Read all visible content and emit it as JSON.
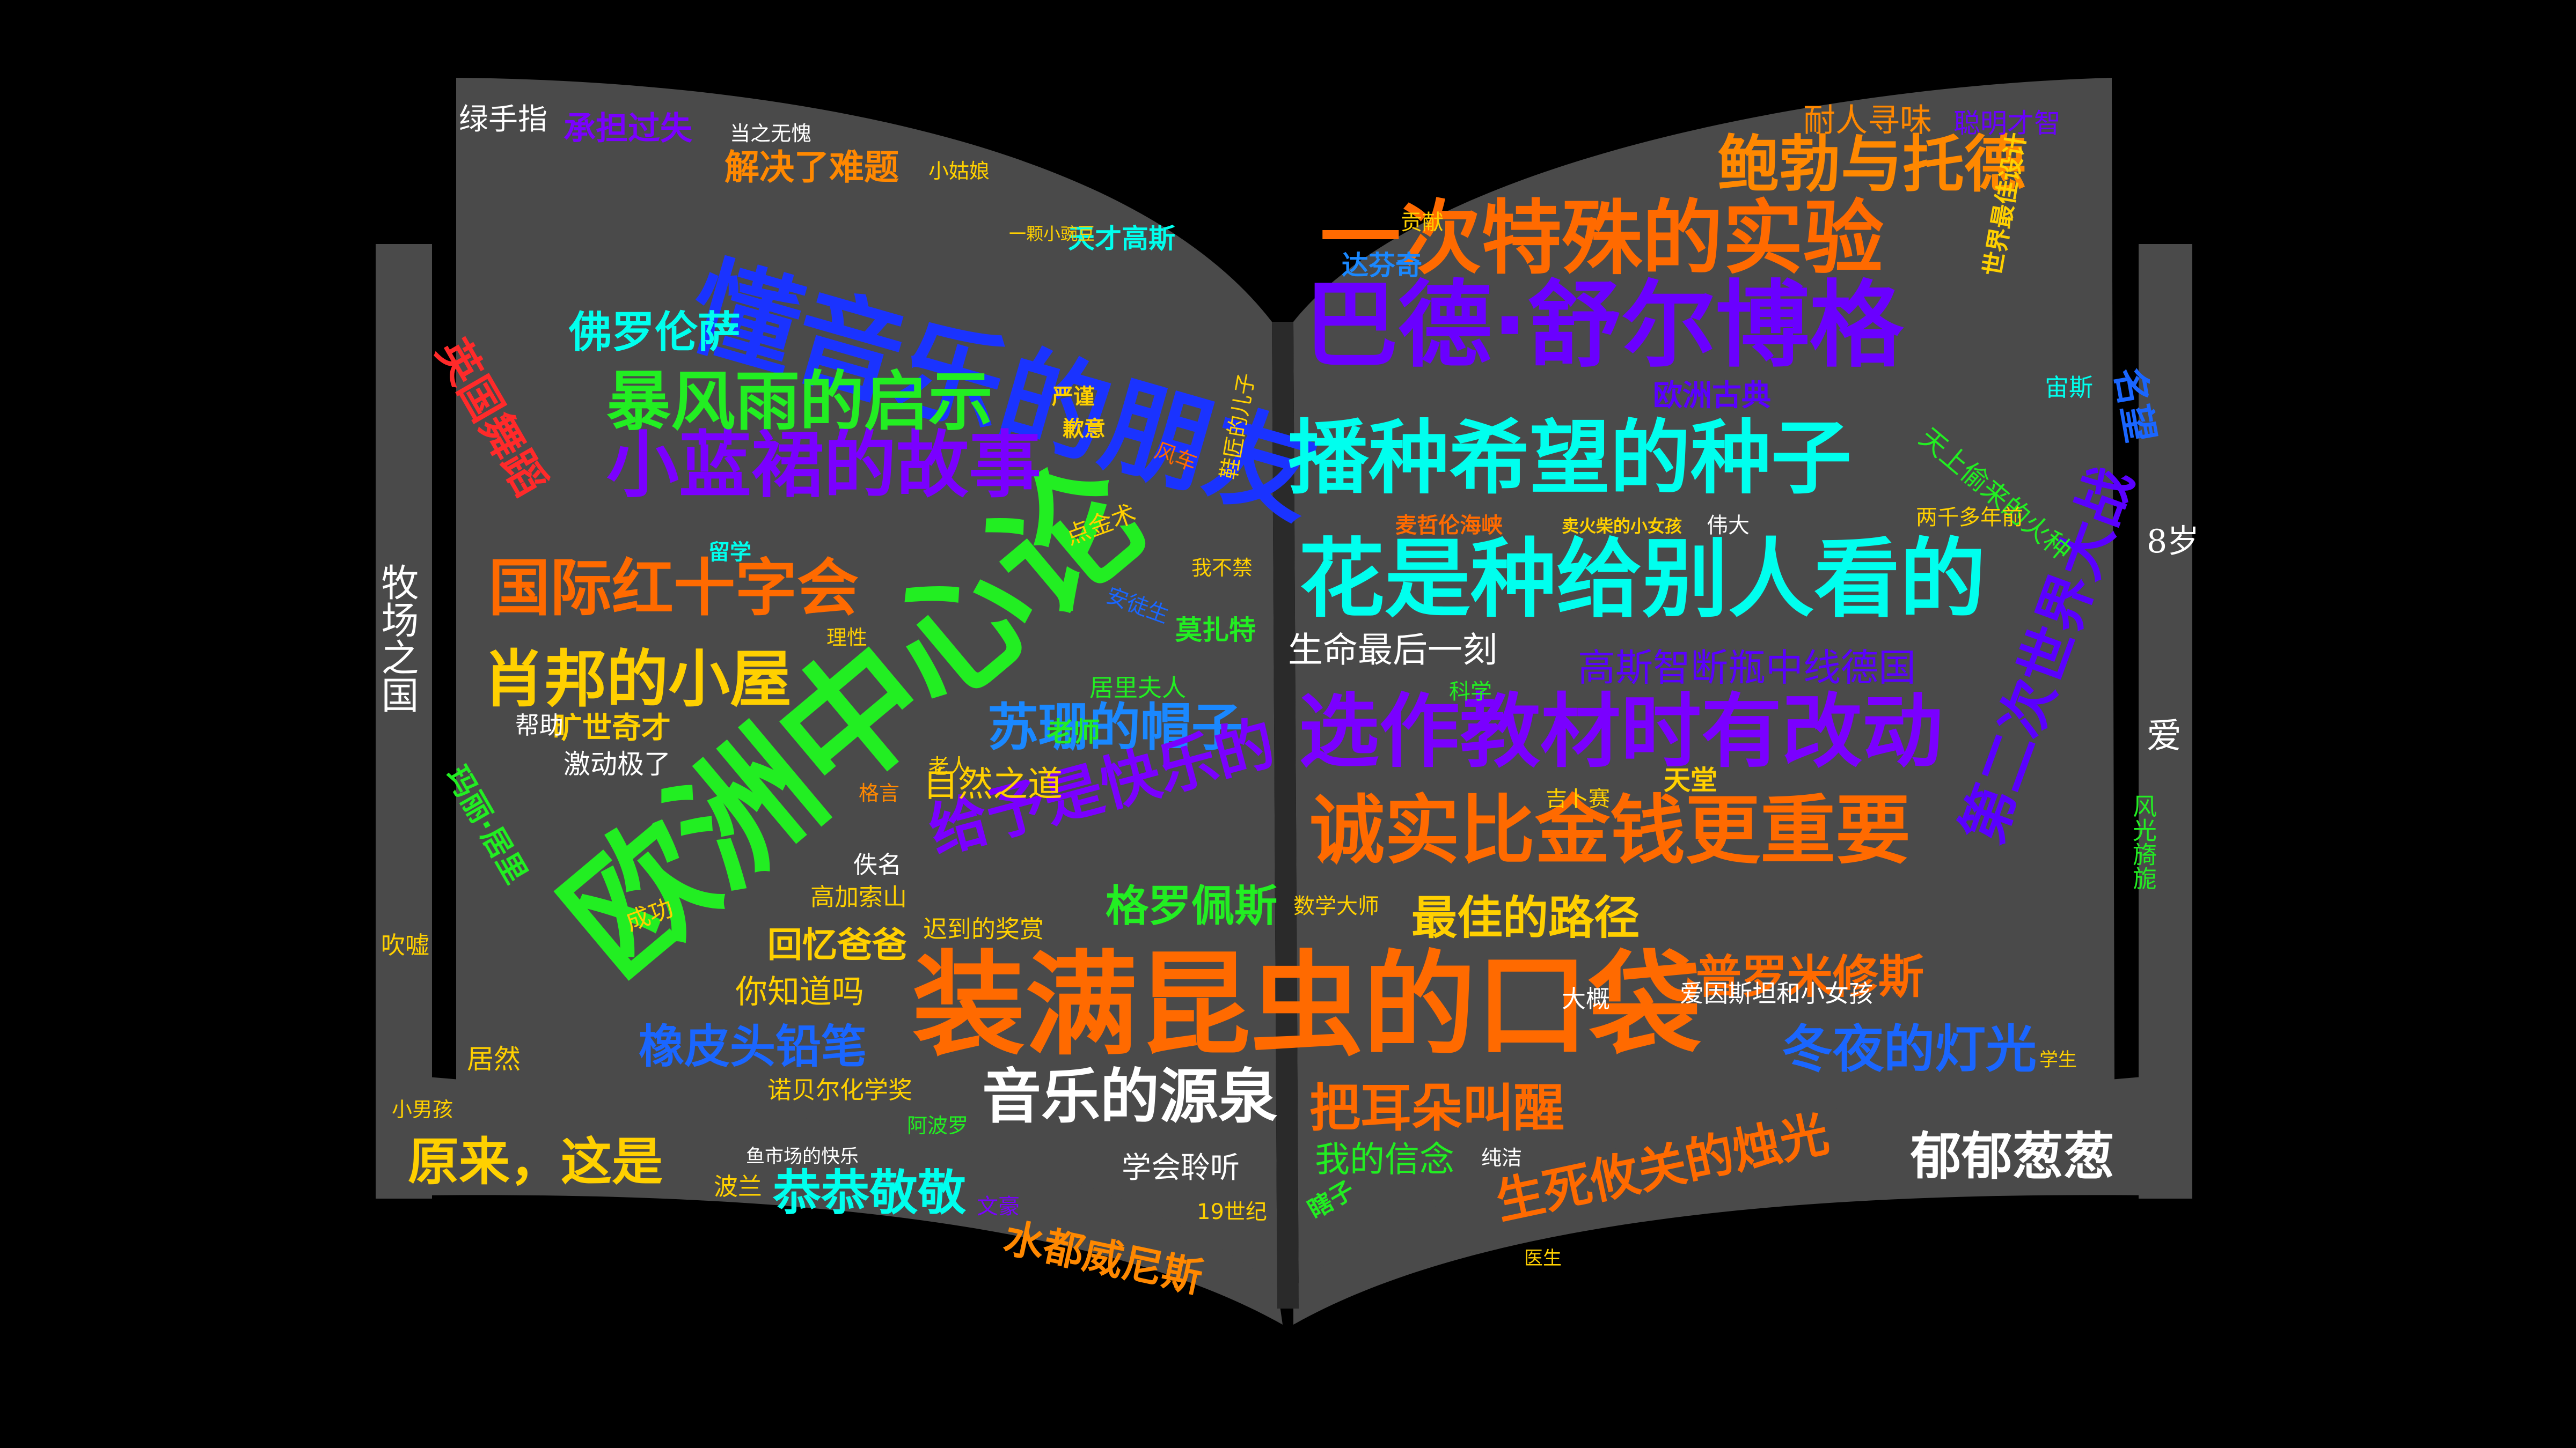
{
  "colors": {
    "background": "#000000",
    "page": "#4a4a4a",
    "spine": "#2a2a2a",
    "edge": "#6a6a6a"
  },
  "words": [
    {
      "text": "欧洲中心论",
      "color": "#22ee22"
    },
    {
      "text": "懂音乐的朋友",
      "color": "#1a33ff"
    },
    {
      "text": "装满昆虫的口袋",
      "color": "#ff6a00"
    },
    {
      "text": "巴德·舒尔博格",
      "color": "#6a00ff"
    },
    {
      "text": "一次特殊的实验",
      "color": "#ff6a00"
    },
    {
      "text": "播种希望的种子",
      "color": "#00ffee"
    },
    {
      "text": "花是种给别人看的",
      "color": "#00ffee"
    },
    {
      "text": "选作教材时有改动",
      "color": "#7a00ff"
    },
    {
      "text": "诚实比金钱更重要",
      "color": "#ff6a00"
    },
    {
      "text": "小蓝裙的故事",
      "color": "#7a00ff"
    },
    {
      "text": "暴风雨的启示",
      "color": "#22ee22"
    },
    {
      "text": "国际红十字会",
      "color": "#ff6a00"
    },
    {
      "text": "肖邦的小屋",
      "color": "#ffd000"
    },
    {
      "text": "苏珊的帽子",
      "color": "#1a88ff"
    },
    {
      "text": "给予是快乐的",
      "color": "#7a00ff"
    },
    {
      "text": "鲍勃与托德",
      "color": "#ff8800"
    },
    {
      "text": "音乐的源泉",
      "color": "#ffffff"
    },
    {
      "text": "第二次世界大战",
      "color": "#5a00ff"
    },
    {
      "text": "冬夜的灯光",
      "color": "#1a66ff"
    },
    {
      "text": "把耳朵叫醒",
      "color": "#ff6a00"
    },
    {
      "text": "生死攸关的烛光",
      "color": "#ff6a00"
    },
    {
      "text": "水都威尼斯",
      "color": "#ff8800"
    },
    {
      "text": "恭恭敬敬",
      "color": "#00ffee"
    },
    {
      "text": "郁郁葱葱",
      "color": "#ffffff"
    },
    {
      "text": "原来，这是",
      "color": "#ffd000"
    },
    {
      "text": "橡皮头铅笔",
      "color": "#1a66ff"
    },
    {
      "text": "最佳的路径",
      "color": "#ffd000"
    },
    {
      "text": "普罗米修斯",
      "color": "#ff6a00"
    },
    {
      "text": "格罗佩斯",
      "color": "#22ee22"
    },
    {
      "text": "回忆爸爸",
      "color": "#ffd000"
    },
    {
      "text": "佛罗伦萨",
      "color": "#00ffee"
    },
    {
      "text": "英国舞蹈",
      "color": "#ff2a2a"
    },
    {
      "text": "解决了难题",
      "color": "#ff8800"
    },
    {
      "text": "承担过失",
      "color": "#7a00ff"
    },
    {
      "text": "绿手指",
      "color": "#ffffff"
    },
    {
      "text": "生命最后一刻",
      "color": "#ffffff"
    },
    {
      "text": "高斯智断瓶中线德国",
      "color": "#5a00ff"
    },
    {
      "text": "欧洲古典",
      "color": "#5a00ff"
    },
    {
      "text": "耐人寻味",
      "color": "#ff8800"
    },
    {
      "text": "聪明才智",
      "color": "#6a00ff"
    },
    {
      "text": "自然之道",
      "color": "#ffd000"
    },
    {
      "text": "老师",
      "color": "#22ee22"
    },
    {
      "text": "你知道吗",
      "color": "#ffd000"
    },
    {
      "text": "高加索山",
      "color": "#ffd000"
    },
    {
      "text": "诺贝尔化学奖",
      "color": "#ffd000"
    },
    {
      "text": "爱因斯坦和小女孩",
      "color": "#ffffff"
    },
    {
      "text": "我的信念",
      "color": "#22ee22"
    },
    {
      "text": "学会聆听",
      "color": "#ffffff"
    },
    {
      "text": "牧场之国",
      "color": "#ffffff"
    },
    {
      "text": "天才高斯",
      "color": "#00ffee"
    },
    {
      "text": "达芬奇",
      "color": "#1a88ff"
    },
    {
      "text": "宙斯",
      "color": "#00ffee"
    },
    {
      "text": "名望",
      "color": "#1a66ff"
    },
    {
      "text": "8岁",
      "color": "#ffffff"
    },
    {
      "text": "爱",
      "color": "#ffffff"
    },
    {
      "text": "风光旖旎",
      "color": "#22ee22"
    },
    {
      "text": "大概",
      "color": "#ffffff"
    },
    {
      "text": "居然",
      "color": "#ffd000"
    },
    {
      "text": "吹嘘",
      "color": "#ffd000"
    },
    {
      "text": "佚名",
      "color": "#ffffff"
    },
    {
      "text": "激动极了",
      "color": "#ffffff"
    },
    {
      "text": "旷世奇才",
      "color": "#ffd000"
    },
    {
      "text": "玛丽·居里",
      "color": "#22ee22"
    },
    {
      "text": "居里夫人",
      "color": "#22ee22"
    },
    {
      "text": "点金术",
      "color": "#ffd000"
    },
    {
      "text": "天上偷来的火种",
      "color": "#22ee22"
    },
    {
      "text": "两千多年前",
      "color": "#ffd000"
    },
    {
      "text": "麦哲伦海峡",
      "color": "#ff6a00"
    },
    {
      "text": "天堂",
      "color": "#ffd000"
    },
    {
      "text": "科学",
      "color": "#22ee22"
    },
    {
      "text": "数学大师",
      "color": "#ffd000"
    },
    {
      "text": "世界最佳设计",
      "color": "#ffd000"
    },
    {
      "text": "卖火柴的小女孩",
      "color": "#ffd000"
    },
    {
      "text": "伟大",
      "color": "#ffffff"
    },
    {
      "text": "鱼市场的快乐",
      "color": "#ffffff"
    },
    {
      "text": "19世纪",
      "color": "#ffd000"
    },
    {
      "text": "医生",
      "color": "#ffd000"
    },
    {
      "text": "学生",
      "color": "#ffd000"
    },
    {
      "text": "小男孩",
      "color": "#ffd000"
    },
    {
      "text": "成功",
      "color": "#ffd000"
    },
    {
      "text": "帮助",
      "color": "#ffffff"
    },
    {
      "text": "理性",
      "color": "#ffd000"
    },
    {
      "text": "老人",
      "color": "#ffd000"
    },
    {
      "text": "严谨",
      "color": "#ffd000"
    },
    {
      "text": "歉意",
      "color": "#ffd000"
    },
    {
      "text": "留学",
      "color": "#00ffee"
    },
    {
      "text": "迟到的奖赏",
      "color": "#ffd000"
    },
    {
      "text": "安徒生",
      "color": "#1a66ff"
    },
    {
      "text": "莫扎特",
      "color": "#22ee22"
    },
    {
      "text": "瞎子",
      "color": "#22ee22"
    },
    {
      "text": "波兰",
      "color": "#ffd000"
    },
    {
      "text": "阿波罗",
      "color": "#22ee22"
    },
    {
      "text": "文豪",
      "color": "#7a00ff"
    },
    {
      "text": "纯洁",
      "color": "#ffffff"
    },
    {
      "text": "贡献",
      "color": "#ffd000"
    },
    {
      "text": "风车",
      "color": "#ff6a00"
    },
    {
      "text": "鞋匠的儿子",
      "color": "#ffd000"
    },
    {
      "text": "我不禁",
      "color": "#ffd000"
    },
    {
      "text": "当之无愧",
      "color": "#ffffff"
    },
    {
      "text": "小姑娘",
      "color": "#ffd000"
    },
    {
      "text": "一颗小豌豆",
      "color": "#ffd000"
    },
    {
      "text": "格言",
      "color": "#ff8800"
    },
    {
      "text": "吉卜赛",
      "color": "#ffd000"
    }
  ]
}
